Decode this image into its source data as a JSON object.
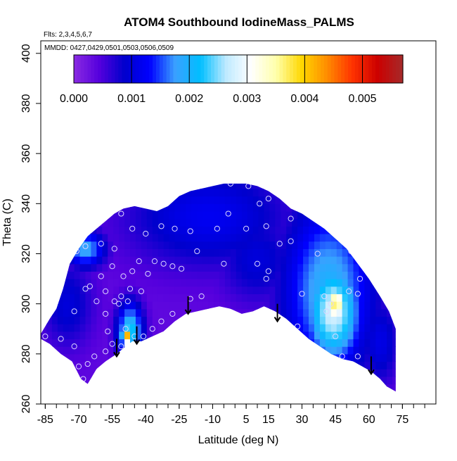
{
  "chart_data": {
    "type": "heatmap",
    "title": "ATOM4 Southbound IodineMass_PALMS",
    "flights_label": "Flts: 2,3,4,5,6,7",
    "dates_label": "MMDD: 0427,0429,0501,0503,0506,0509",
    "xlabel": "Latitude (deg N)",
    "ylabel": "Theta (C)",
    "xlim": [
      -87,
      90
    ],
    "ylim": [
      260,
      405
    ],
    "x_ticks": [
      -85,
      -70,
      -55,
      -40,
      -25,
      -10,
      5,
      15,
      30,
      45,
      60,
      75
    ],
    "x_tick_labels": [
      "-85",
      "-70",
      "-55",
      "-40",
      "-25",
      "-10",
      "5",
      "15",
      "30",
      "45",
      "60",
      "75"
    ],
    "y_ticks": [
      260,
      280,
      300,
      320,
      340,
      360,
      380,
      400
    ],
    "y_tick_labels": [
      "260",
      "280",
      "300",
      "320",
      "340",
      "360",
      "380",
      "400"
    ],
    "colorbar": {
      "range": [
        0,
        0.0057
      ],
      "ticks": [
        0.0,
        0.001,
        0.002,
        0.003,
        0.004,
        0.005
      ],
      "tick_labels": [
        "0.000",
        "0.001",
        "0.002",
        "0.003",
        "0.004",
        "0.005"
      ],
      "colors": [
        "#8a2be2",
        "#5500dd",
        "#0000cc",
        "#0000ff",
        "#3aa0ff",
        "#00bfff",
        "#bde9ff",
        "#ffffff",
        "#ffffaa",
        "#ffd700",
        "#ff8c00",
        "#ff3300",
        "#cc0000",
        "#a52a2a"
      ]
    },
    "lower_boundary": [
      [
        -87,
        286
      ],
      [
        -83,
        284
      ],
      [
        -78,
        280
      ],
      [
        -73,
        277
      ],
      [
        -69,
        270
      ],
      [
        -66,
        268
      ],
      [
        -62,
        274
      ],
      [
        -58,
        277
      ],
      [
        -53,
        280
      ],
      [
        -49,
        283
      ],
      [
        -46,
        285
      ],
      [
        -42,
        285
      ],
      [
        -37,
        287
      ],
      [
        -32,
        289
      ],
      [
        -27,
        293
      ],
      [
        -22,
        296
      ],
      [
        -17,
        297
      ],
      [
        -12,
        298
      ],
      [
        -7,
        299
      ],
      [
        -2,
        298
      ],
      [
        3,
        296
      ],
      [
        8,
        297
      ],
      [
        13,
        299
      ],
      [
        18,
        297
      ],
      [
        23,
        294
      ],
      [
        28,
        290
      ],
      [
        33,
        286
      ],
      [
        38,
        283
      ],
      [
        43,
        280
      ],
      [
        48,
        278
      ],
      [
        53,
        277
      ],
      [
        57,
        275
      ],
      [
        61,
        273
      ],
      [
        65,
        270
      ],
      [
        68,
        267
      ],
      [
        72,
        265
      ]
    ],
    "upper_boundary": [
      [
        -87,
        288
      ],
      [
        -83,
        294
      ],
      [
        -80,
        298
      ],
      [
        -77,
        306
      ],
      [
        -74,
        316
      ],
      [
        -70,
        322
      ],
      [
        -66,
        327
      ],
      [
        -62,
        330
      ],
      [
        -58,
        333
      ],
      [
        -54,
        336
      ],
      [
        -50,
        338
      ],
      [
        -45,
        339
      ],
      [
        -40,
        338
      ],
      [
        -35,
        337
      ],
      [
        -30,
        339
      ],
      [
        -25,
        343
      ],
      [
        -20,
        345
      ],
      [
        -15,
        346
      ],
      [
        -10,
        347
      ],
      [
        -5,
        348
      ],
      [
        0,
        348
      ],
      [
        5,
        348
      ],
      [
        10,
        347
      ],
      [
        15,
        345
      ],
      [
        20,
        342
      ],
      [
        25,
        338
      ],
      [
        30,
        336
      ],
      [
        35,
        333
      ],
      [
        40,
        330
      ],
      [
        45,
        326
      ],
      [
        50,
        322
      ],
      [
        55,
        316
      ],
      [
        60,
        310
      ],
      [
        65,
        303
      ],
      [
        69,
        297
      ],
      [
        72,
        290
      ],
      [
        72,
        265
      ]
    ],
    "field_features": [
      {
        "x": 45,
        "y": 300,
        "value": 0.0037,
        "sx": 4,
        "sy": 6
      },
      {
        "x": 44,
        "y": 297,
        "value": 0.0028,
        "sx": 9,
        "sy": 15
      },
      {
        "x": 42,
        "y": 305,
        "value": 0.002,
        "sx": 14,
        "sy": 25
      },
      {
        "x": -49,
        "y": 287,
        "value": 0.005,
        "sx": 1.2,
        "sy": 3
      },
      {
        "x": -47,
        "y": 289,
        "value": 0.0023,
        "sx": 4,
        "sy": 8
      },
      {
        "x": -67,
        "y": 322,
        "value": 0.0019,
        "sx": 6,
        "sy": 5
      },
      {
        "x": -12,
        "y": 335,
        "value": 0.0012,
        "sx": 25,
        "sy": 14
      },
      {
        "x": 10,
        "y": 318,
        "value": 0.001,
        "sx": 12,
        "sy": 12
      },
      {
        "x": -75,
        "y": 300,
        "value": 0.001,
        "sx": 8,
        "sy": 12
      },
      {
        "x": 65,
        "y": 285,
        "value": 0.0011,
        "sx": 6,
        "sy": 12
      },
      {
        "x": 30,
        "y": 318,
        "value": 0.0009,
        "sx": 6,
        "sy": 16
      }
    ],
    "background_value": 0.00035,
    "samples": [
      [
        -85,
        287
      ],
      [
        -78,
        286
      ],
      [
        -72,
        283
      ],
      [
        -70,
        275
      ],
      [
        -68,
        270
      ],
      [
        -66,
        276
      ],
      [
        -63,
        279
      ],
      [
        -58,
        281
      ],
      [
        -55,
        284
      ],
      [
        -51,
        283
      ],
      [
        -49,
        290
      ],
      [
        -45,
        287
      ],
      [
        -41,
        287
      ],
      [
        -37,
        290
      ],
      [
        -33,
        293
      ],
      [
        -28,
        296
      ],
      [
        -20,
        302
      ],
      [
        -15,
        303
      ],
      [
        -57,
        289
      ],
      [
        -58,
        296
      ],
      [
        -62,
        301
      ],
      [
        -58,
        305
      ],
      [
        -54,
        301
      ],
      [
        -52,
        300
      ],
      [
        -48,
        301
      ],
      [
        -51,
        303
      ],
      [
        -47,
        306
      ],
      [
        -42,
        305
      ],
      [
        -72,
        297
      ],
      [
        -67,
        306
      ],
      [
        -65,
        307
      ],
      [
        -60,
        311
      ],
      [
        -55,
        315
      ],
      [
        -50,
        311
      ],
      [
        -46,
        313
      ],
      [
        -43,
        317
      ],
      [
        -39,
        312
      ],
      [
        -36,
        317
      ],
      [
        -32,
        316
      ],
      [
        -28,
        315
      ],
      [
        -24,
        314
      ],
      [
        -17,
        321
      ],
      [
        -54,
        322
      ],
      [
        -60,
        324
      ],
      [
        -67,
        323
      ],
      [
        -71,
        321
      ],
      [
        -68,
        327
      ],
      [
        -46,
        330
      ],
      [
        -40,
        328
      ],
      [
        -33,
        331
      ],
      [
        -27,
        330
      ],
      [
        -20,
        329
      ],
      [
        -8,
        330
      ],
      [
        -3,
        336
      ],
      [
        5,
        330
      ],
      [
        -51,
        336
      ],
      [
        -2,
        348
      ],
      [
        6,
        347
      ],
      [
        11,
        340
      ],
      [
        15,
        342
      ],
      [
        14,
        331
      ],
      [
        10,
        316
      ],
      [
        14,
        310
      ],
      [
        15,
        313
      ],
      [
        -5,
        316
      ],
      [
        20,
        324
      ],
      [
        25,
        334
      ],
      [
        25,
        325
      ],
      [
        30,
        304
      ],
      [
        28,
        291
      ],
      [
        37,
        320
      ],
      [
        40,
        303
      ],
      [
        41,
        297
      ],
      [
        43,
        300
      ],
      [
        45,
        287
      ],
      [
        48,
        279
      ],
      [
        51,
        305
      ],
      [
        52,
        321
      ],
      [
        54,
        333
      ],
      [
        55,
        304
      ],
      [
        56,
        310
      ],
      [
        55,
        279
      ]
    ],
    "arrows": [
      {
        "x": -53,
        "y_top": 286,
        "y_bottom": 279
      },
      {
        "x": -44,
        "y_top": 291,
        "y_bottom": 284
      },
      {
        "x": -21,
        "y_top": 303,
        "y_bottom": 296
      },
      {
        "x": 19,
        "y_top": 300,
        "y_bottom": 293
      },
      {
        "x": 61,
        "y_top": 279,
        "y_bottom": 272
      }
    ],
    "grid": false,
    "legend_placement": "top"
  }
}
